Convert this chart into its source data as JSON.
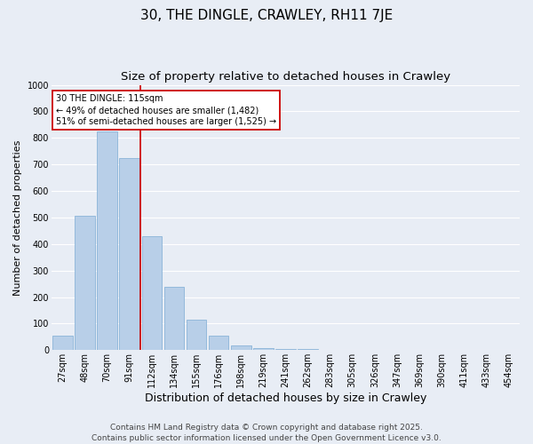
{
  "title": "30, THE DINGLE, CRAWLEY, RH11 7JE",
  "subtitle": "Size of property relative to detached houses in Crawley",
  "xlabel": "Distribution of detached houses by size in Crawley",
  "ylabel": "Number of detached properties",
  "categories": [
    "27sqm",
    "48sqm",
    "70sqm",
    "91sqm",
    "112sqm",
    "134sqm",
    "155sqm",
    "176sqm",
    "198sqm",
    "219sqm",
    "241sqm",
    "262sqm",
    "283sqm",
    "305sqm",
    "326sqm",
    "347sqm",
    "369sqm",
    "390sqm",
    "411sqm",
    "433sqm",
    "454sqm"
  ],
  "values": [
    55,
    505,
    825,
    725,
    428,
    238,
    115,
    55,
    18,
    8,
    5,
    3,
    2,
    1,
    0,
    0,
    0,
    0,
    0,
    0,
    0
  ],
  "bar_color": "#b8cfe8",
  "bar_edgecolor": "#8ab4d8",
  "background_color": "#e8edf5",
  "grid_color": "#ffffff",
  "vline_x_index": 4,
  "vline_color": "#cc0000",
  "annotation_text": "30 THE DINGLE: 115sqm\n← 49% of detached houses are smaller (1,482)\n51% of semi-detached houses are larger (1,525) →",
  "annotation_box_facecolor": "#ffffff",
  "annotation_box_edgecolor": "#cc0000",
  "footer_text": "Contains HM Land Registry data © Crown copyright and database right 2025.\nContains public sector information licensed under the Open Government Licence v3.0.",
  "ylim": [
    0,
    1000
  ],
  "yticks": [
    0,
    100,
    200,
    300,
    400,
    500,
    600,
    700,
    800,
    900,
    1000
  ],
  "title_fontsize": 11,
  "subtitle_fontsize": 9.5,
  "xlabel_fontsize": 9,
  "ylabel_fontsize": 8,
  "tick_fontsize": 7,
  "annotation_fontsize": 7,
  "footer_fontsize": 6.5
}
